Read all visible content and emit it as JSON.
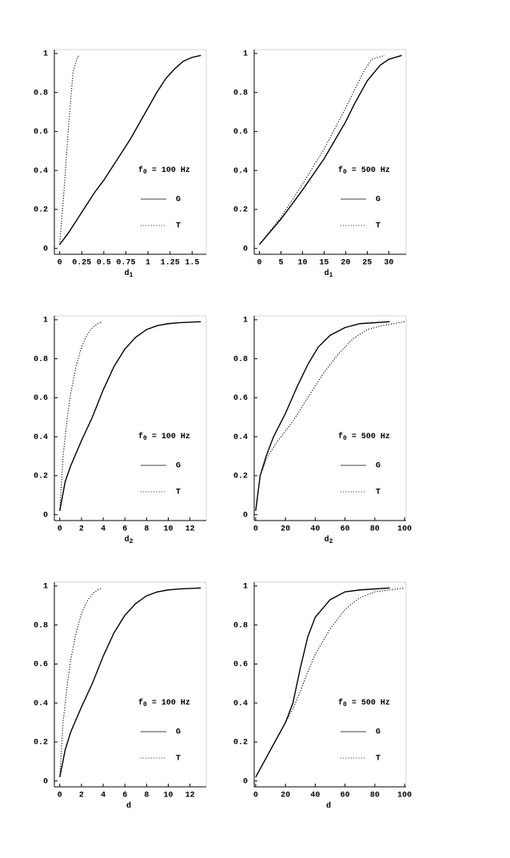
{
  "chart_data": [
    {
      "type": "line",
      "annotation": {
        "symbol": "f",
        "subscript": "0",
        "text": "= 100 Hz"
      },
      "x_label": "d",
      "x_label_subscript": "1",
      "xlim": [
        -0.06,
        1.66
      ],
      "xticks": [
        0,
        0.25,
        0.5,
        0.75,
        1,
        1.25,
        1.5
      ],
      "ylim": [
        -0.03,
        1.02
      ],
      "yticks": [
        0,
        0.2,
        0.4,
        0.6,
        0.8,
        1
      ],
      "series": [
        {
          "name": "G",
          "color": "#000000",
          "dash": "solid",
          "x": [
            0,
            0.1,
            0.2,
            0.3,
            0.4,
            0.5,
            0.6,
            0.7,
            0.8,
            0.9,
            1.0,
            1.1,
            1.2,
            1.3,
            1.4,
            1.5,
            1.6
          ],
          "values": [
            0.02,
            0.08,
            0.15,
            0.22,
            0.29,
            0.35,
            0.42,
            0.49,
            0.56,
            0.64,
            0.72,
            0.8,
            0.87,
            0.92,
            0.96,
            0.98,
            0.99
          ]
        },
        {
          "name": "T",
          "color": "#000000",
          "dash": "dotted",
          "x": [
            0,
            0.05,
            0.1,
            0.15,
            0.2,
            0.22
          ],
          "values": [
            0.02,
            0.3,
            0.62,
            0.9,
            0.98,
            0.99
          ]
        }
      ]
    },
    {
      "type": "line",
      "annotation": {
        "symbol": "f",
        "subscript": "0",
        "text": "= 500 Hz"
      },
      "x_label": "d",
      "x_label_subscript": "1",
      "xlim": [
        -1.2,
        34
      ],
      "xticks": [
        0,
        5,
        10,
        15,
        20,
        25,
        30
      ],
      "ylim": [
        -0.03,
        1.02
      ],
      "yticks": [
        0,
        0.2,
        0.4,
        0.6,
        0.8,
        1
      ],
      "series": [
        {
          "name": "G",
          "color": "#000000",
          "dash": "solid",
          "x": [
            0,
            5,
            10,
            15,
            20,
            22,
            25,
            28,
            30,
            33
          ],
          "values": [
            0.02,
            0.15,
            0.3,
            0.46,
            0.65,
            0.74,
            0.86,
            0.94,
            0.97,
            0.99
          ]
        },
        {
          "name": "T",
          "color": "#000000",
          "dash": "dotted",
          "x": [
            0,
            5,
            10,
            15,
            20,
            24,
            26,
            29
          ],
          "values": [
            0.02,
            0.16,
            0.33,
            0.51,
            0.72,
            0.9,
            0.97,
            0.99
          ]
        }
      ]
    },
    {
      "type": "line",
      "annotation": {
        "symbol": "f",
        "subscript": "0",
        "text": "= 100 Hz"
      },
      "x_label": "d",
      "x_label_subscript": "2",
      "xlim": [
        -0.5,
        13.5
      ],
      "xticks": [
        0,
        2,
        4,
        6,
        8,
        10,
        12
      ],
      "ylim": [
        -0.03,
        1.02
      ],
      "yticks": [
        0,
        0.2,
        0.4,
        0.6,
        0.8,
        1
      ],
      "series": [
        {
          "name": "G",
          "color": "#000000",
          "dash": "solid",
          "x": [
            0,
            0.5,
            1,
            2,
            3,
            4,
            5,
            6,
            7,
            8,
            9,
            10,
            11,
            13
          ],
          "values": [
            0.02,
            0.17,
            0.25,
            0.38,
            0.5,
            0.64,
            0.76,
            0.85,
            0.91,
            0.95,
            0.97,
            0.98,
            0.985,
            0.99
          ]
        },
        {
          "name": "T",
          "color": "#000000",
          "dash": "dotted",
          "x": [
            0,
            0.3,
            0.7,
            1,
            1.5,
            2,
            2.5,
            3,
            3.5,
            3.9
          ],
          "values": [
            0.02,
            0.3,
            0.5,
            0.62,
            0.76,
            0.86,
            0.92,
            0.96,
            0.98,
            0.99
          ]
        }
      ]
    },
    {
      "type": "line",
      "annotation": {
        "symbol": "f",
        "subscript": "0",
        "text": "= 500 Hz"
      },
      "x_label": "d",
      "x_label_subscript": "2",
      "xlim": [
        -1,
        101
      ],
      "xticks": [
        0,
        20,
        40,
        60,
        80,
        100
      ],
      "ylim": [
        -0.03,
        1.02
      ],
      "yticks": [
        0,
        0.2,
        0.4,
        0.6,
        0.8,
        1
      ],
      "series": [
        {
          "name": "G",
          "color": "#000000",
          "dash": "solid",
          "x": [
            0,
            3,
            7,
            12,
            20,
            28,
            35,
            42,
            50,
            60,
            70,
            90
          ],
          "values": [
            0.02,
            0.2,
            0.3,
            0.4,
            0.52,
            0.66,
            0.77,
            0.86,
            0.92,
            0.96,
            0.98,
            0.99
          ]
        },
        {
          "name": "T",
          "color": "#000000",
          "dash": "dotted",
          "x": [
            0,
            3,
            8,
            15,
            25,
            35,
            45,
            55,
            65,
            75,
            85,
            100
          ],
          "values": [
            0.02,
            0.2,
            0.3,
            0.38,
            0.48,
            0.6,
            0.72,
            0.82,
            0.9,
            0.95,
            0.97,
            0.99
          ]
        }
      ]
    },
    {
      "type": "line",
      "annotation": {
        "symbol": "f",
        "subscript": "0",
        "text": "= 100 Hz"
      },
      "x_label": "d",
      "xlim": [
        -0.5,
        13.5
      ],
      "xticks": [
        0,
        2,
        4,
        6,
        8,
        10,
        12
      ],
      "ylim": [
        -0.03,
        1.02
      ],
      "yticks": [
        0,
        0.2,
        0.4,
        0.6,
        0.8,
        1
      ],
      "series": [
        {
          "name": "G",
          "color": "#000000",
          "dash": "solid",
          "x": [
            0,
            0.5,
            1,
            2,
            3,
            4,
            5,
            6,
            7,
            8,
            9,
            10,
            11,
            13
          ],
          "values": [
            0.02,
            0.16,
            0.25,
            0.38,
            0.5,
            0.64,
            0.76,
            0.85,
            0.91,
            0.95,
            0.97,
            0.98,
            0.985,
            0.99
          ]
        },
        {
          "name": "T",
          "color": "#000000",
          "dash": "dotted",
          "x": [
            0,
            0.3,
            0.7,
            1,
            1.5,
            2,
            2.5,
            3,
            3.5,
            3.9
          ],
          "values": [
            0.02,
            0.3,
            0.5,
            0.62,
            0.76,
            0.86,
            0.92,
            0.96,
            0.98,
            0.99
          ]
        }
      ]
    },
    {
      "type": "line",
      "annotation": {
        "symbol": "f",
        "subscript": "0",
        "text": "= 500 Hz"
      },
      "x_label": "d",
      "xlim": [
        -1,
        101
      ],
      "xticks": [
        0,
        20,
        40,
        60,
        80,
        100
      ],
      "ylim": [
        -0.03,
        1.02
      ],
      "yticks": [
        0,
        0.2,
        0.4,
        0.6,
        0.8,
        1
      ],
      "series": [
        {
          "name": "G",
          "color": "#000000",
          "dash": "solid",
          "x": [
            0,
            10,
            20,
            25,
            30,
            35,
            40,
            50,
            60,
            70,
            90
          ],
          "values": [
            0.02,
            0.16,
            0.3,
            0.4,
            0.58,
            0.74,
            0.84,
            0.93,
            0.97,
            0.98,
            0.99
          ]
        },
        {
          "name": "T",
          "color": "#000000",
          "dash": "dotted",
          "x": [
            0,
            10,
            20,
            25,
            30,
            35,
            40,
            50,
            60,
            70,
            80,
            100
          ],
          "values": [
            0.02,
            0.16,
            0.3,
            0.37,
            0.46,
            0.56,
            0.65,
            0.78,
            0.88,
            0.94,
            0.97,
            0.99
          ]
        }
      ]
    }
  ]
}
